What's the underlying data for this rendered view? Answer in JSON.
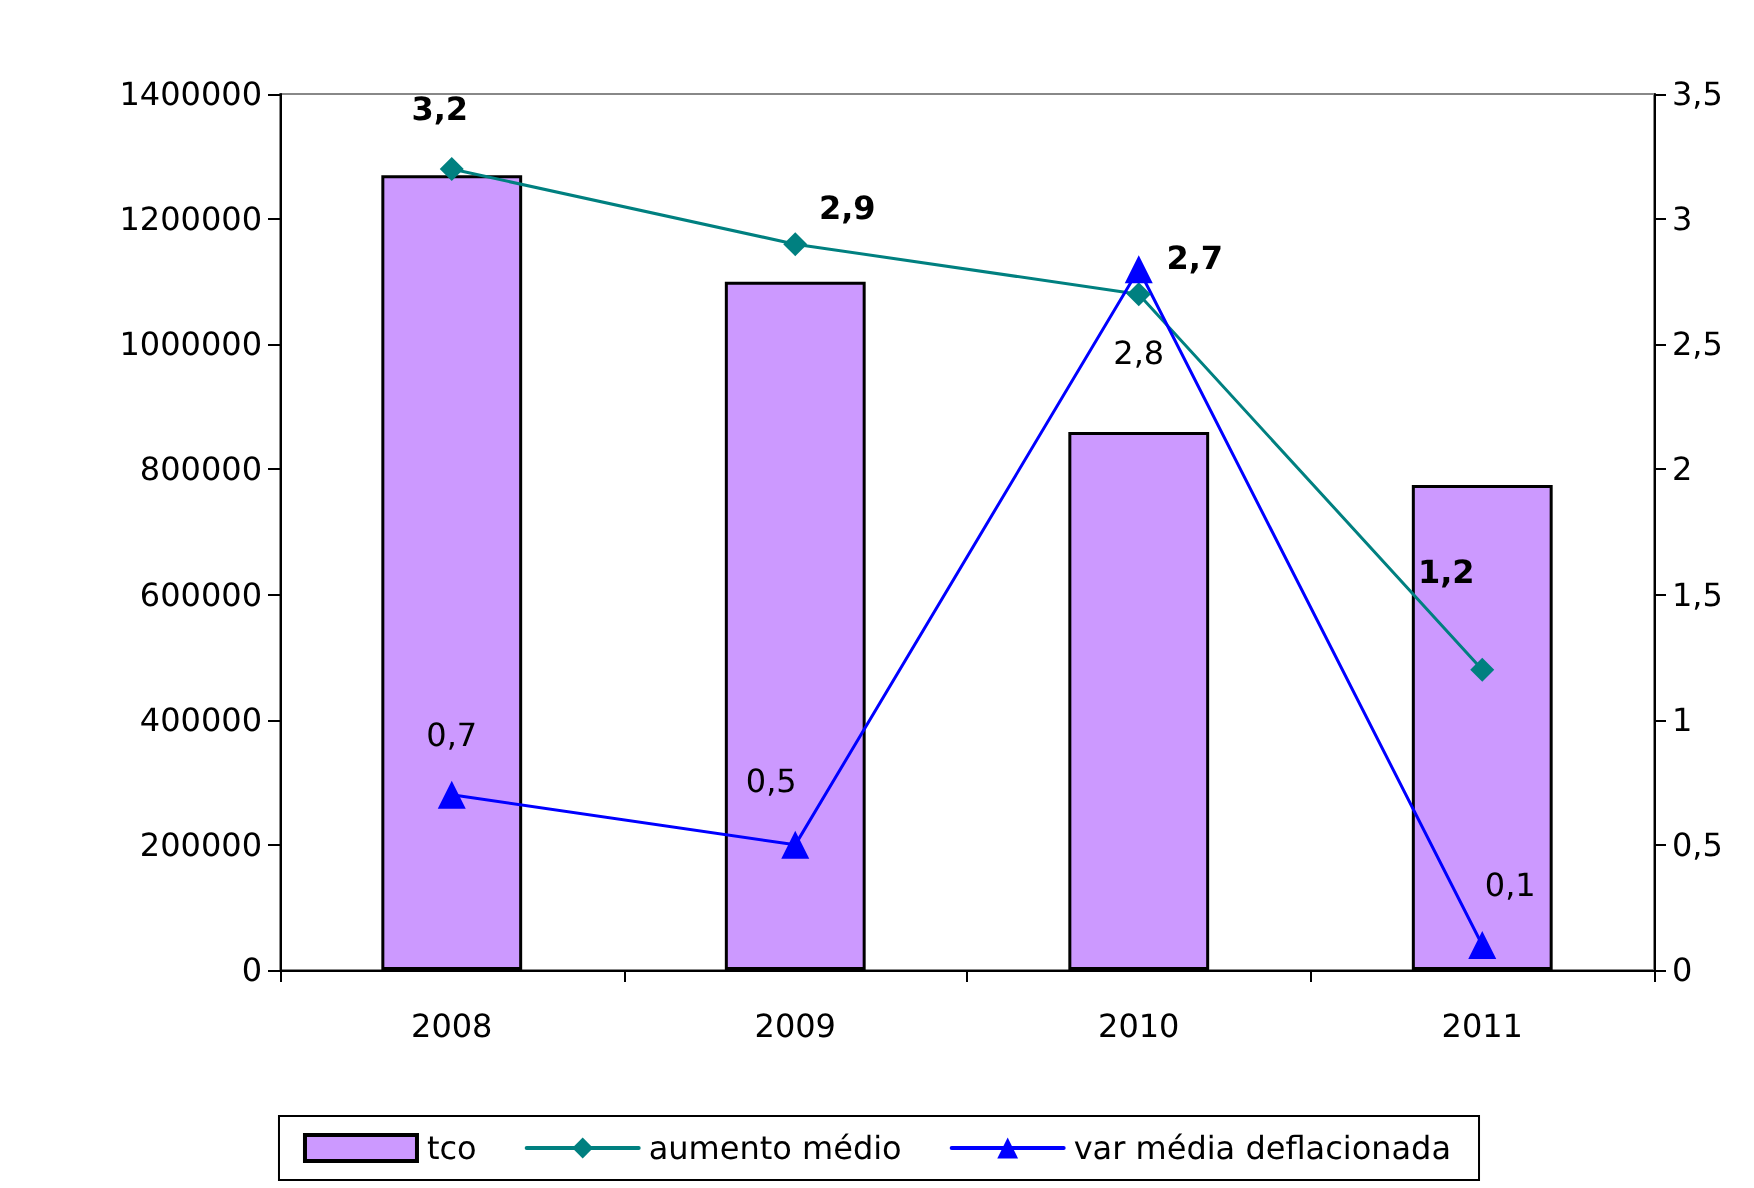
{
  "chart_data": {
    "type": "bar",
    "categories": [
      "2008",
      "2009",
      "2010",
      "2011"
    ],
    "series": [
      {
        "name": "tco",
        "color": "#cc99ff",
        "values": [
          1270000,
          1100000,
          860000,
          775000
        ]
      },
      {
        "name": "aumento médio",
        "type": "line",
        "axis": "y2",
        "color": "#008080",
        "marker": "diamond",
        "values": [
          3.2,
          2.9,
          2.7,
          1.2
        ],
        "value_labels": [
          "3,2",
          "2,9",
          "2,7",
          "1,2"
        ]
      },
      {
        "name": "var média deflacionada",
        "type": "line",
        "axis": "y2",
        "color": "#0000ff",
        "marker": "triangle",
        "values": [
          0.7,
          0.5,
          2.8,
          0.1
        ],
        "value_labels": [
          "0,7",
          "0,5",
          "2,8",
          "0,1"
        ]
      }
    ],
    "ylim": [
      0,
      1400000
    ],
    "yticks": [
      0,
      200000,
      400000,
      600000,
      800000,
      1000000,
      1200000,
      1400000
    ],
    "y2lim": [
      0,
      3.5
    ],
    "y2ticks": [
      0,
      {
        "value": 0.5,
        "label": "0,5"
      },
      1,
      {
        "value": 1.5,
        "label": "1,5"
      },
      2,
      {
        "value": 2.5,
        "label": "2,5"
      },
      3,
      {
        "value": 3.5,
        "label": "3,5"
      }
    ],
    "grid": false,
    "legend": "bottom"
  }
}
